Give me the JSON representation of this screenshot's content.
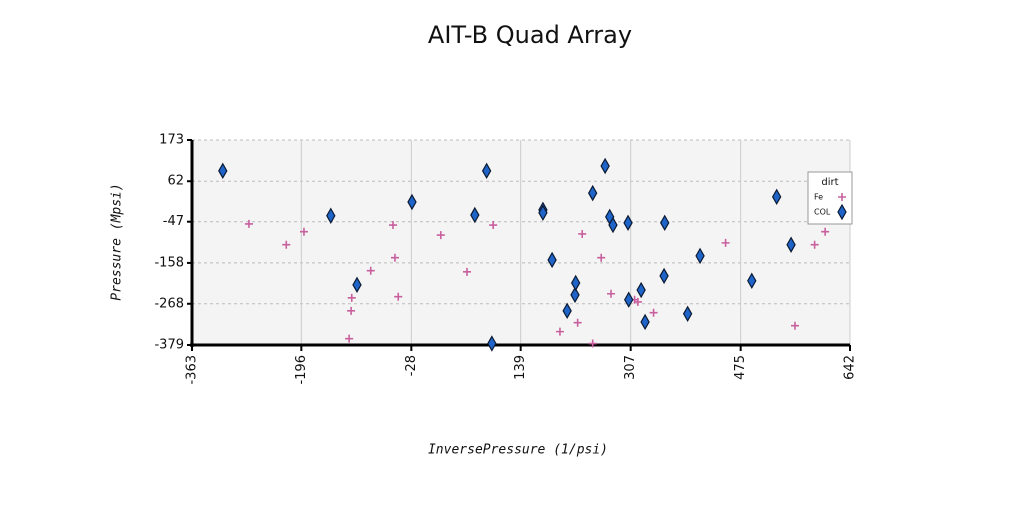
{
  "chart_data": {
    "type": "scatter",
    "title": "AIT-B Quad Array",
    "x_label": "InversePressure (1/psi)",
    "y_label": "Pressure (Mpsi)",
    "xlim": [
      -363,
      642
    ],
    "xticks": [
      -363,
      -196,
      -28,
      139,
      307,
      475,
      642
    ],
    "ylim": [
      -379,
      173
    ],
    "yticks": [
      173,
      62,
      -47,
      -158,
      -268,
      -379
    ],
    "grid": true,
    "legend_title": "dirt",
    "legend_position": "upper right",
    "series": [
      {
        "name": "Fe",
        "color": "#c8609e",
        "marker": "plus",
        "x": [
          -276,
          -219,
          -192,
          -123,
          -120,
          -119,
          -90,
          -56,
          -53,
          -48,
          17,
          57,
          97,
          199,
          226,
          233,
          249,
          262,
          277,
          313,
          318,
          342,
          452,
          558,
          588,
          604
        ],
        "values": [
          -53,
          -109,
          -74,
          -362,
          -287,
          -252,
          -179,
          -56,
          -144,
          -249,
          -83,
          -182,
          -56,
          -343,
          -319,
          -80,
          -375,
          -144,
          -241,
          -257,
          -263,
          -292,
          -104,
          -327,
          -109,
          -74
        ]
      },
      {
        "name": "COL",
        "color": "#1f64c8",
        "marker": "diamond",
        "x": [
          -316,
          -151,
          -111,
          -27,
          69,
          87,
          95,
          173,
          173,
          187,
          210,
          222,
          223,
          249,
          268,
          275,
          280,
          303,
          304,
          323,
          329,
          359,
          358,
          394,
          413,
          492,
          530,
          552
        ],
        "values": [
          90,
          -31,
          -217,
          6,
          -29,
          90,
          -375,
          -15,
          -23,
          -150,
          -287,
          -244,
          -212,
          30,
          103,
          -34,
          -56,
          -50,
          -257,
          -231,
          -317,
          -50,
          -193,
          -295,
          -139,
          -206,
          20,
          -109
        ]
      }
    ]
  }
}
